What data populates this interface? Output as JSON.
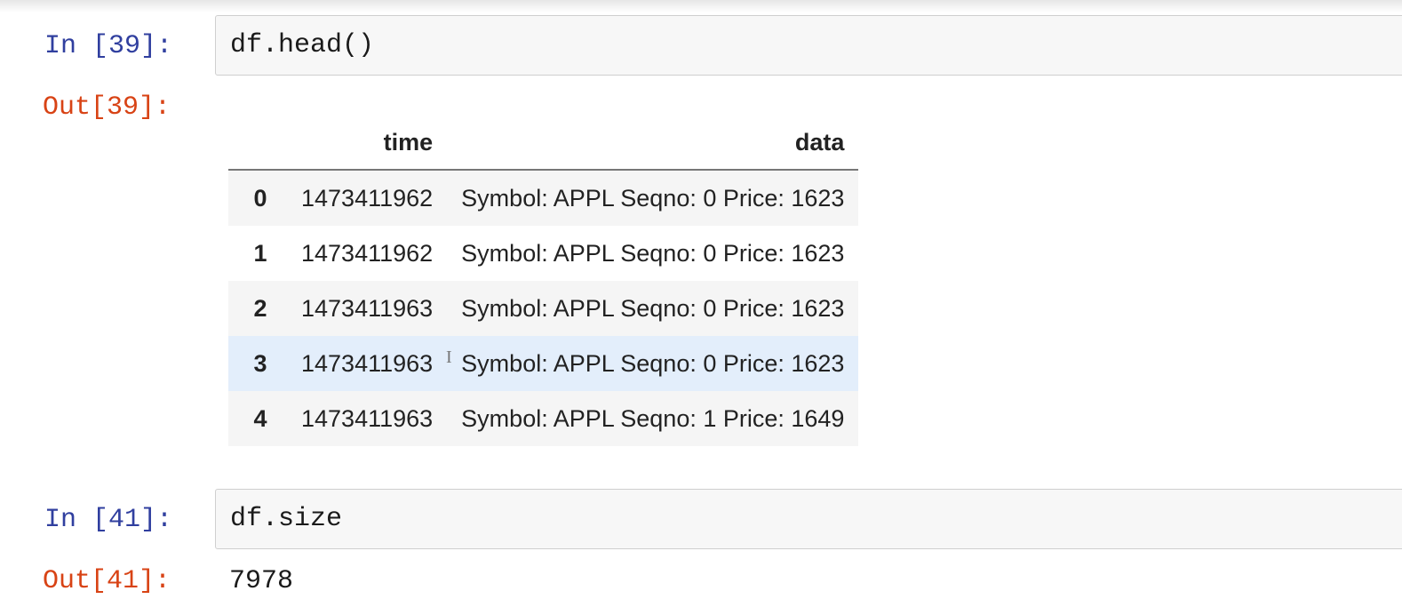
{
  "cells": [
    {
      "in_prompt": "In [39]:",
      "code": "df.head()",
      "out_prompt": "Out[39]:",
      "table": {
        "columns": [
          "time",
          "data"
        ],
        "rows": [
          {
            "index": "0",
            "time": "1473411962",
            "data": "Symbol: APPL Seqno: 0 Price: 1623"
          },
          {
            "index": "1",
            "time": "1473411962",
            "data": "Symbol: APPL Seqno: 0 Price: 1623"
          },
          {
            "index": "2",
            "time": "1473411963",
            "data": "Symbol: APPL Seqno: 0 Price: 1623"
          },
          {
            "index": "3",
            "time": "1473411963",
            "data": "Symbol: APPL Seqno: 0 Price: 1623"
          },
          {
            "index": "4",
            "time": "1473411963",
            "data": "Symbol: APPL Seqno: 1 Price: 1649"
          }
        ]
      }
    },
    {
      "in_prompt": "In [41]:",
      "code": "df.size",
      "out_prompt": "Out[41]:",
      "output": "7978"
    }
  ],
  "colors": {
    "in_prompt": "#303f9f",
    "out_prompt": "#d84315",
    "hover_row": "#e3eefb",
    "striped_row": "#f5f5f5"
  },
  "icons": {
    "text_cursor": "i-beam-cursor-icon"
  }
}
